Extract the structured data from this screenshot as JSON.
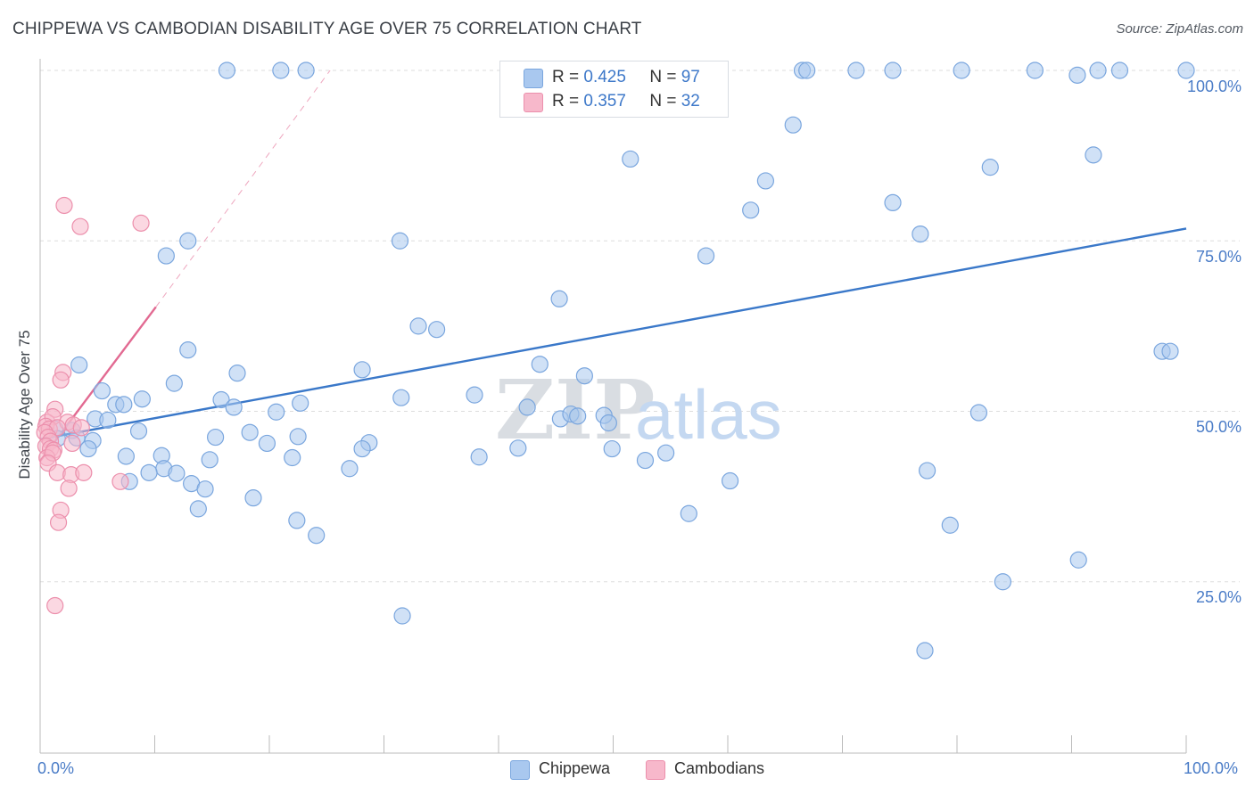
{
  "title": "CHIPPEWA VS CAMBODIAN DISABILITY AGE OVER 75 CORRELATION CHART",
  "source": "Source: ZipAtlas.com",
  "colors": {
    "chippewa_fill": "#a9c8ef",
    "chippewa_stroke": "#7aa6de",
    "chippewa_line": "#3a78c9",
    "cambodian_fill": "#f7b8cb",
    "cambodian_stroke": "#ec8fac",
    "cambodian_line": "#e26a92",
    "axis_text": "#4a7cc7",
    "grid": "#dddddd"
  },
  "legend": {
    "rows": [
      {
        "r_label": "R =",
        "r_value": "0.425",
        "n_label": "N =",
        "n_value": "97",
        "series": "Chippewa"
      },
      {
        "r_label": "R =",
        "r_value": "0.357",
        "n_label": "N =",
        "n_value": "32",
        "series": "Cambodians"
      }
    ]
  },
  "chart_data": {
    "type": "scatter",
    "title": "CHIPPEWA VS CAMBODIAN DISABILITY AGE OVER 75 CORRELATION CHART",
    "xlabel": "",
    "ylabel": "Disability Age Over 75",
    "xlim": [
      0,
      100
    ],
    "ylim": [
      0,
      103
    ],
    "x_tick_labels": [
      "0.0%",
      "100.0%"
    ],
    "y_tick_labels": [
      "25.0%",
      "50.0%",
      "75.0%",
      "100.0%"
    ],
    "y_ticks": [
      25,
      50,
      75,
      100
    ],
    "watermark": {
      "part1": "ZIP",
      "part2": "atlas"
    },
    "series": [
      {
        "name": "Chippewa",
        "points": [
          [
            16.3,
            100
          ],
          [
            21.0,
            100
          ],
          [
            23.2,
            100
          ],
          [
            66.5,
            100
          ],
          [
            66.9,
            100
          ],
          [
            71.2,
            100
          ],
          [
            74.4,
            100
          ],
          [
            80.4,
            100
          ],
          [
            86.8,
            100
          ],
          [
            90.5,
            99.3
          ],
          [
            92.3,
            100
          ],
          [
            94.2,
            100
          ],
          [
            100,
            100
          ],
          [
            65.7,
            92.0
          ],
          [
            51.5,
            87.0
          ],
          [
            91.9,
            87.6
          ],
          [
            82.9,
            85.8
          ],
          [
            63.3,
            83.8
          ],
          [
            74.4,
            80.6
          ],
          [
            62.0,
            79.5
          ],
          [
            76.8,
            76.0
          ],
          [
            12.9,
            75.0
          ],
          [
            31.4,
            75.0
          ],
          [
            11.0,
            72.8
          ],
          [
            58.1,
            72.8
          ],
          [
            45.3,
            66.5
          ],
          [
            33.0,
            62.5
          ],
          [
            34.6,
            62.0
          ],
          [
            12.9,
            59.0
          ],
          [
            97.9,
            58.8
          ],
          [
            98.6,
            58.8
          ],
          [
            3.4,
            56.8
          ],
          [
            43.6,
            56.9
          ],
          [
            17.2,
            55.6
          ],
          [
            28.1,
            56.1
          ],
          [
            47.5,
            55.2
          ],
          [
            11.7,
            54.1
          ],
          [
            5.4,
            53.0
          ],
          [
            6.6,
            51.0
          ],
          [
            7.3,
            51.0
          ],
          [
            8.9,
            51.8
          ],
          [
            15.8,
            51.7
          ],
          [
            22.7,
            51.2
          ],
          [
            31.5,
            52.0
          ],
          [
            37.9,
            52.4
          ],
          [
            16.9,
            50.6
          ],
          [
            20.6,
            49.9
          ],
          [
            42.5,
            50.6
          ],
          [
            4.8,
            48.9
          ],
          [
            5.9,
            48.7
          ],
          [
            45.4,
            48.9
          ],
          [
            46.3,
            49.6
          ],
          [
            46.9,
            49.3
          ],
          [
            49.2,
            49.4
          ],
          [
            49.6,
            48.3
          ],
          [
            81.9,
            49.8
          ],
          [
            1.3,
            47.4
          ],
          [
            2.8,
            47.2
          ],
          [
            8.6,
            47.1
          ],
          [
            18.3,
            46.9
          ],
          [
            3.2,
            46.1
          ],
          [
            15.3,
            46.2
          ],
          [
            22.5,
            46.3
          ],
          [
            1.5,
            46.0
          ],
          [
            4.6,
            45.7
          ],
          [
            19.8,
            45.3
          ],
          [
            28.7,
            45.4
          ],
          [
            4.2,
            44.5
          ],
          [
            28.1,
            44.5
          ],
          [
            41.7,
            44.6
          ],
          [
            49.9,
            44.5
          ],
          [
            7.5,
            43.4
          ],
          [
            10.6,
            43.5
          ],
          [
            14.8,
            42.9
          ],
          [
            22.0,
            43.2
          ],
          [
            52.8,
            42.8
          ],
          [
            54.6,
            43.9
          ],
          [
            10.8,
            41.6
          ],
          [
            9.5,
            41.0
          ],
          [
            11.9,
            40.9
          ],
          [
            27.0,
            41.6
          ],
          [
            38.3,
            43.3
          ],
          [
            77.4,
            41.3
          ],
          [
            7.8,
            39.7
          ],
          [
            13.2,
            39.4
          ],
          [
            14.4,
            38.6
          ],
          [
            60.2,
            39.8
          ],
          [
            18.6,
            37.3
          ],
          [
            13.8,
            35.7
          ],
          [
            56.6,
            35.0
          ],
          [
            22.4,
            34.0
          ],
          [
            79.4,
            33.3
          ],
          [
            24.1,
            31.8
          ],
          [
            90.6,
            28.2
          ],
          [
            84.0,
            25.0
          ],
          [
            31.6,
            20.0
          ],
          [
            77.2,
            14.9
          ]
        ]
      },
      {
        "name": "Cambodians",
        "points": [
          [
            2.1,
            80.2
          ],
          [
            3.5,
            77.1
          ],
          [
            8.8,
            77.6
          ],
          [
            2.0,
            55.7
          ],
          [
            1.8,
            54.6
          ],
          [
            1.3,
            50.3
          ],
          [
            0.6,
            48.4
          ],
          [
            1.1,
            49.2
          ],
          [
            2.4,
            48.4
          ],
          [
            0.5,
            47.8
          ],
          [
            0.8,
            47.4
          ],
          [
            1.5,
            47.6
          ],
          [
            2.9,
            48.0
          ],
          [
            3.6,
            47.6
          ],
          [
            0.4,
            46.9
          ],
          [
            0.7,
            46.2
          ],
          [
            0.9,
            45.6
          ],
          [
            0.5,
            44.9
          ],
          [
            0.9,
            44.5
          ],
          [
            1.2,
            44.3
          ],
          [
            2.8,
            45.3
          ],
          [
            0.6,
            43.2
          ],
          [
            1.1,
            43.9
          ],
          [
            0.7,
            42.4
          ],
          [
            1.5,
            41.0
          ],
          [
            2.7,
            40.7
          ],
          [
            3.8,
            41.0
          ],
          [
            7.0,
            39.7
          ],
          [
            2.5,
            38.7
          ],
          [
            1.8,
            35.5
          ],
          [
            1.6,
            33.7
          ],
          [
            1.3,
            21.5
          ]
        ]
      }
    ],
    "trend_lines": [
      {
        "series": "Chippewa",
        "x": [
          0,
          100
        ],
        "y": [
          45.9,
          76.8
        ],
        "style": "solid"
      },
      {
        "series": "Cambodians",
        "x": [
          0,
          10.1
        ],
        "y": [
          42.7,
          65.3
        ],
        "style": "solid"
      },
      {
        "series": "Cambodians",
        "x": [
          10.1,
          25.3
        ],
        "y": [
          65.3,
          100
        ],
        "style": "dashed"
      }
    ]
  },
  "bottom_legend": [
    {
      "label": "Chippewa"
    },
    {
      "label": "Cambodians"
    }
  ]
}
